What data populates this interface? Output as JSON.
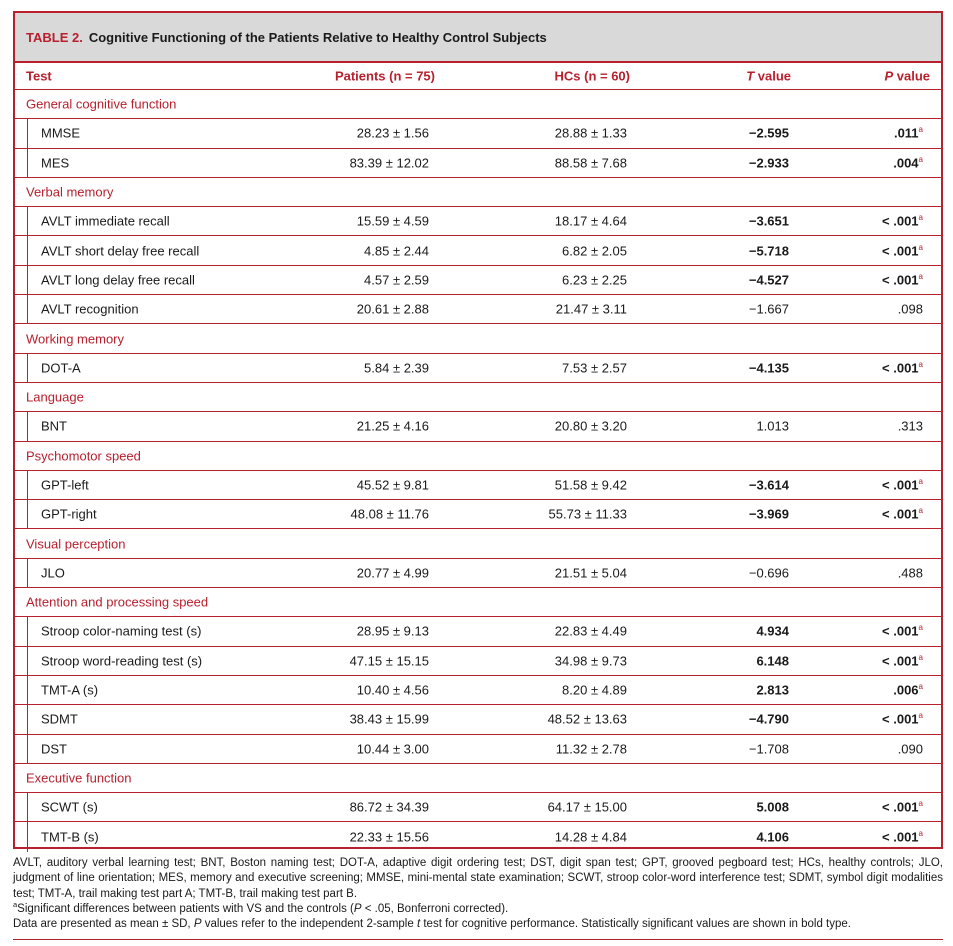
{
  "table": {
    "label": "TABLE 2.",
    "title": "Cognitive Functioning of the Patients Relative to Healthy Control Subjects",
    "headers": {
      "test": "Test",
      "patients": "Patients (n = 75)",
      "hcs": "HCs (n = 60)",
      "t_italic": "T",
      "t_rest": " value",
      "p_italic": "P",
      "p_rest": " value"
    },
    "sections": [
      {
        "name": "General cognitive function",
        "rows": [
          {
            "test": "MMSE",
            "patients": "28.23 ± 1.56",
            "hcs": "28.88 ± 1.33",
            "t": "−2.595",
            "p": ".011",
            "sig": true
          },
          {
            "test": "MES",
            "patients": "83.39 ± 12.02",
            "hcs": "88.58 ± 7.68",
            "t": "−2.933",
            "p": ".004",
            "sig": true
          }
        ]
      },
      {
        "name": "Verbal memory",
        "rows": [
          {
            "test": "AVLT immediate recall",
            "patients": "15.59 ± 4.59",
            "hcs": "18.17 ± 4.64",
            "t": "−3.651",
            "p": "< .001",
            "sig": true
          },
          {
            "test": "AVLT short delay free recall",
            "patients": "4.85 ± 2.44",
            "hcs": "6.82 ± 2.05",
            "t": "−5.718",
            "p": "< .001",
            "sig": true
          },
          {
            "test": "AVLT long delay free recall",
            "patients": "4.57 ± 2.59",
            "hcs": "6.23 ± 2.25",
            "t": "−4.527",
            "p": "< .001",
            "sig": true
          },
          {
            "test": "AVLT recognition",
            "patients": "20.61 ± 2.88",
            "hcs": "21.47 ± 3.11",
            "t": "−1.667",
            "p": ".098",
            "sig": false
          }
        ]
      },
      {
        "name": "Working memory",
        "rows": [
          {
            "test": "DOT-A",
            "patients": "5.84 ± 2.39",
            "hcs": "7.53 ± 2.57",
            "t": "−4.135",
            "p": "< .001",
            "sig": true
          }
        ]
      },
      {
        "name": "Language",
        "rows": [
          {
            "test": "BNT",
            "patients": "21.25 ± 4.16",
            "hcs": "20.80 ± 3.20",
            "t": "1.013",
            "p": ".313",
            "sig": false
          }
        ]
      },
      {
        "name": "Psychomotor speed",
        "rows": [
          {
            "test": "GPT-left",
            "patients": "45.52 ± 9.81",
            "hcs": "51.58 ± 9.42",
            "t": "−3.614",
            "p": "< .001",
            "sig": true
          },
          {
            "test": "GPT-right",
            "patients": "48.08 ± 11.76",
            "hcs": "55.73 ± 11.33",
            "t": "−3.969",
            "p": "< .001",
            "sig": true
          }
        ]
      },
      {
        "name": "Visual perception",
        "rows": [
          {
            "test": "JLO",
            "patients": "20.77 ± 4.99",
            "hcs": "21.51 ± 5.04",
            "t": "−0.696",
            "p": ".488",
            "sig": false
          }
        ]
      },
      {
        "name": "Attention and processing speed",
        "rows": [
          {
            "test": "Stroop color-naming test (s)",
            "patients": "28.95 ± 9.13",
            "hcs": "22.83 ± 4.49",
            "t": "4.934",
            "p": "< .001",
            "sig": true
          },
          {
            "test": "Stroop word-reading test (s)",
            "patients": "47.15 ± 15.15",
            "hcs": "34.98 ± 9.73",
            "t": "6.148",
            "p": "< .001",
            "sig": true
          },
          {
            "test": "TMT-A (s)",
            "patients": "10.40 ± 4.56",
            "hcs": "8.20 ± 4.89",
            "t": "2.813",
            "p": ".006",
            "sig": true
          },
          {
            "test": "SDMT",
            "patients": "38.43 ± 15.99",
            "hcs": "48.52 ± 13.63",
            "t": "−4.790",
            "p": "< .001",
            "sig": true
          },
          {
            "test": "DST",
            "patients": "10.44 ± 3.00",
            "hcs": "11.32 ± 2.78",
            "t": "−1.708",
            "p": ".090",
            "sig": false
          }
        ]
      },
      {
        "name": "Executive function",
        "rows": [
          {
            "test": "SCWT (s)",
            "patients": "86.72 ± 34.39",
            "hcs": "64.17 ± 15.00",
            "t": "5.008",
            "p": "< .001",
            "sig": true
          },
          {
            "test": "TMT-B (s)",
            "patients": "22.33 ± 15.56",
            "hcs": "14.28 ± 4.84",
            "t": "4.106",
            "p": "< .001",
            "sig": true
          }
        ]
      }
    ],
    "sig_marker": "a"
  },
  "footnotes": {
    "abbreviations": "AVLT, auditory verbal learning test; BNT, Boston naming test; DOT-A, adaptive digit ordering test; DST, digit span test; GPT, grooved pegboard test; HCs, healthy controls; JLO, judgment of line orientation; MES, memory and executive screening; MMSE, mini-mental state examination; SCWT, stroop color-word interference test; SDMT, symbol digit modalities test; TMT-A, trail making test part A; TMT-B, trail making test part B.",
    "sig_marker": "a",
    "significance_pre": "Significant differences between patients with VS and the controls (",
    "significance_p": "P",
    "significance_post": " < .05, Bonferroni corrected).",
    "data_pre": "Data are presented as mean ± SD, ",
    "data_p": "P",
    "data_mid": " values refer to the independent 2-sample ",
    "data_t": "t",
    "data_post": " test for cognitive performance. Statistically significant values are shown in bold type."
  },
  "colors": {
    "accent": "#b8202e",
    "caption_bg": "#d9d9d9"
  }
}
